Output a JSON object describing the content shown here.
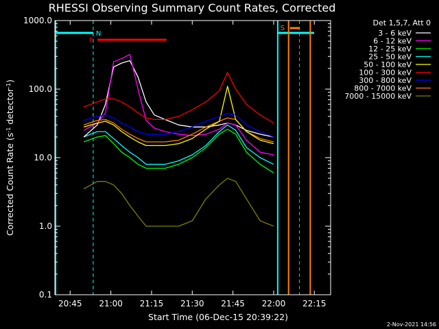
{
  "chart_data": {
    "type": "line",
    "title": "RHESSI Observing Summary Count Rates, Corrected",
    "xlabel": "Start Time (06-Dec-15 20:39:22)",
    "ylabel_main": "Corrected Count Rate (s",
    "ylabel_sup1": "-1",
    "ylabel_mid": " detector",
    "ylabel_sup2": "-1",
    "ylabel_end": ")",
    "y_scale": "log",
    "ylim": [
      0.1,
      1000
    ],
    "xlim": [
      "20:39:22",
      "22:21:00"
    ],
    "x_ticks": [
      "20:45",
      "21:00",
      "21:15",
      "21:30",
      "21:45",
      "22:00",
      "22:15"
    ],
    "y_ticks": [
      "0.1",
      "1.0",
      "10.0",
      "100.0",
      "1000.0"
    ],
    "legend_header": "Det 1,5,7, Att 0",
    "legend_placement": "right",
    "timestamp": "2-Nov-2021 14:56",
    "annotations": {
      "night": "N",
      "flare": "F",
      "saa": "S"
    },
    "time_points": [
      "20:50",
      "20:55",
      "20:58",
      "21:01",
      "21:04",
      "21:07",
      "21:10",
      "21:13",
      "21:16",
      "21:20",
      "21:25",
      "21:30",
      "21:35",
      "21:40",
      "21:43",
      "21:46",
      "21:50",
      "21:55",
      "22:00"
    ],
    "series": [
      {
        "name": "3 - 6 keV",
        "color": "#ffffff",
        "values": [
          20,
          30,
          60,
          210,
          240,
          260,
          150,
          65,
          42,
          36,
          30,
          28,
          28,
          30,
          32,
          30,
          25,
          22,
          20
        ]
      },
      {
        "name": "6 - 12 keV",
        "color": "#ff00ff",
        "values": [
          25,
          32,
          45,
          250,
          280,
          320,
          100,
          35,
          27,
          24,
          22,
          21,
          22,
          26,
          32,
          30,
          18,
          12,
          11
        ]
      },
      {
        "name": "12 - 25 keV",
        "color": "#00ff00",
        "values": [
          17,
          20,
          21,
          16,
          12,
          10,
          8,
          7,
          7,
          7,
          8,
          10,
          14,
          22,
          26,
          22,
          12,
          8,
          6
        ]
      },
      {
        "name": "25 - 50 keV",
        "color": "#00ffff",
        "values": [
          20,
          24,
          24,
          19,
          15,
          12,
          10,
          8,
          8,
          8,
          9,
          11,
          15,
          24,
          30,
          25,
          14,
          10,
          8
        ]
      },
      {
        "name": "50 - 100 keV",
        "color": "#ffff00",
        "values": [
          28,
          32,
          34,
          30,
          24,
          20,
          17,
          15,
          15,
          15,
          16,
          19,
          26,
          34,
          110,
          36,
          24,
          18,
          16
        ]
      },
      {
        "name": "100 - 300 keV",
        "color": "#ff0000",
        "values": [
          55,
          65,
          72,
          72,
          65,
          55,
          45,
          38,
          36,
          36,
          40,
          50,
          65,
          95,
          175,
          100,
          60,
          42,
          32
        ]
      },
      {
        "name": "300 - 800 keV",
        "color": "#0000ff",
        "values": [
          35,
          40,
          42,
          38,
          32,
          28,
          24,
          22,
          22,
          22,
          24,
          28,
          34,
          40,
          44,
          42,
          30,
          24,
          20
        ]
      },
      {
        "name": "800 - 7000 keV",
        "color": "#ff7f00",
        "values": [
          30,
          35,
          36,
          32,
          26,
          22,
          19,
          17,
          17,
          17,
          18,
          22,
          28,
          34,
          38,
          36,
          24,
          19,
          17
        ]
      },
      {
        "name": "7000 - 15000 keV",
        "color": "#808000",
        "values": [
          3.5,
          4.5,
          4.5,
          4,
          3,
          2,
          1.4,
          1,
          1,
          1,
          1,
          1.2,
          2.5,
          4,
          5,
          4.5,
          2.5,
          1.2,
          1
        ]
      }
    ]
  }
}
